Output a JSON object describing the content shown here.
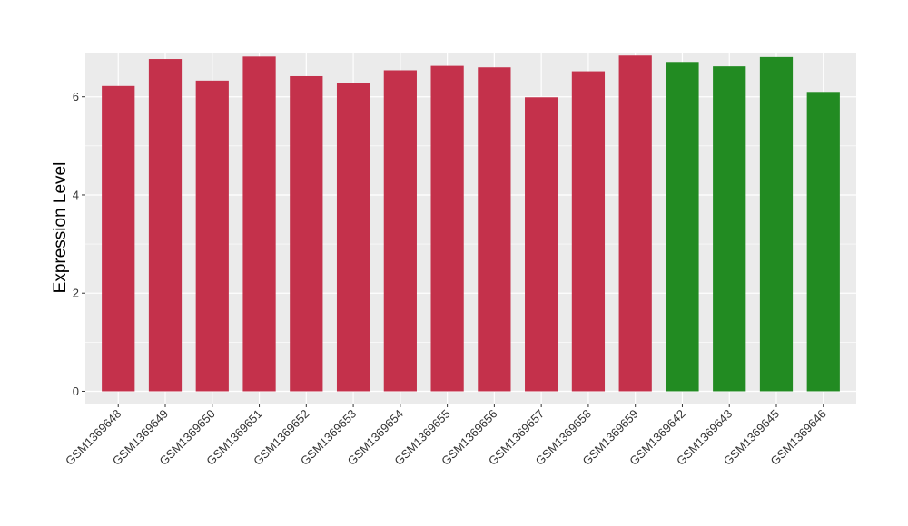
{
  "chart_data": {
    "type": "bar",
    "ylabel": "Expression Level",
    "xlabel": "",
    "ylim": [
      -0.25,
      6.9
    ],
    "yticks": [
      0,
      2,
      4,
      6
    ],
    "grid": true,
    "categories": [
      "GSM1369648",
      "GSM1369649",
      "GSM1369650",
      "GSM1369651",
      "GSM1369652",
      "GSM1369653",
      "GSM1369654",
      "GSM1369655",
      "GSM1369656",
      "GSM1369657",
      "GSM1369658",
      "GSM1369659",
      "GSM1369642",
      "GSM1369643",
      "GSM1369645",
      "GSM1369646"
    ],
    "values": [
      6.22,
      6.77,
      6.33,
      6.82,
      6.42,
      6.28,
      6.54,
      6.63,
      6.6,
      5.99,
      6.52,
      6.84,
      6.71,
      6.62,
      6.81,
      6.1
    ],
    "bar_colors": [
      "#C4314B",
      "#C4314B",
      "#C4314B",
      "#C4314B",
      "#C4314B",
      "#C4314B",
      "#C4314B",
      "#C4314B",
      "#C4314B",
      "#C4314B",
      "#C4314B",
      "#C4314B",
      "#228B22",
      "#228B22",
      "#228B22",
      "#228B22"
    ],
    "panel_background": "#EBEBEB",
    "grid_color": "#FFFFFF"
  }
}
